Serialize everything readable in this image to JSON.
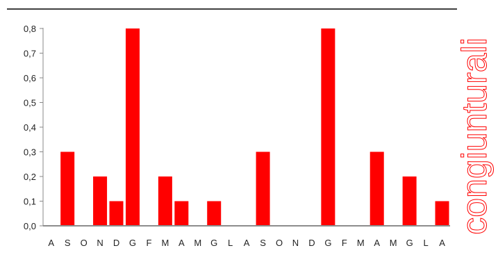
{
  "chart_data": {
    "type": "bar",
    "categories": [
      "A",
      "S",
      "O",
      "N",
      "D",
      "G",
      "F",
      "M",
      "A",
      "M",
      "G",
      "L",
      "A",
      "S",
      "O",
      "N",
      "D",
      "G",
      "F",
      "M",
      "A",
      "M",
      "G",
      "L",
      "A"
    ],
    "values": [
      0,
      0.3,
      0,
      0.2,
      0.1,
      0.8,
      0,
      0.2,
      0.1,
      0,
      0.1,
      0,
      0,
      0.3,
      0,
      0,
      0,
      0.8,
      0,
      0,
      0.3,
      0,
      0.2,
      0,
      0.1
    ],
    "ylim": [
      0,
      0.8
    ],
    "yticks": [
      "0,0",
      "0,1",
      "0,2",
      "0,3",
      "0,4",
      "0,5",
      "0,6",
      "0,7",
      "0,8"
    ],
    "grid": false,
    "bar_color": "#ff0000",
    "side_label": "congiunturali",
    "side_label_color": "#ff0000"
  }
}
